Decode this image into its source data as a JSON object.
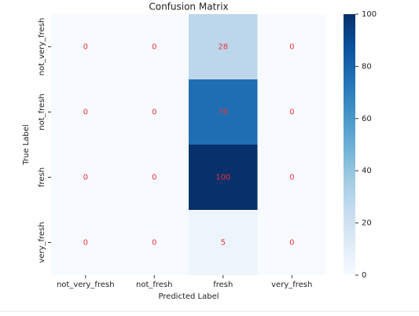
{
  "chart_data": {
    "type": "heatmap",
    "title": "Confusion Matrix",
    "x_label": "Predicted Label",
    "y_label": "True Label",
    "x_categories": [
      "not_very_fresh",
      "not_fresh",
      "fresh",
      "very_fresh"
    ],
    "y_categories": [
      "not_very_fresh",
      "not_fresh",
      "fresh",
      "very_fresh"
    ],
    "values": [
      [
        0,
        0,
        28,
        0
      ],
      [
        0,
        0,
        76,
        0
      ],
      [
        0,
        0,
        100,
        0
      ],
      [
        0,
        0,
        5,
        0
      ]
    ],
    "clim": [
      0,
      100
    ],
    "cticks": [
      0,
      20,
      40,
      60,
      80,
      100
    ],
    "colorscale": [
      "#f7fbff",
      "#deebf7",
      "#c6dbef",
      "#9ecae1",
      "#6baed6",
      "#4292c6",
      "#2171b5",
      "#08519c",
      "#08306b"
    ],
    "annotation_color": "#e8333a"
  }
}
